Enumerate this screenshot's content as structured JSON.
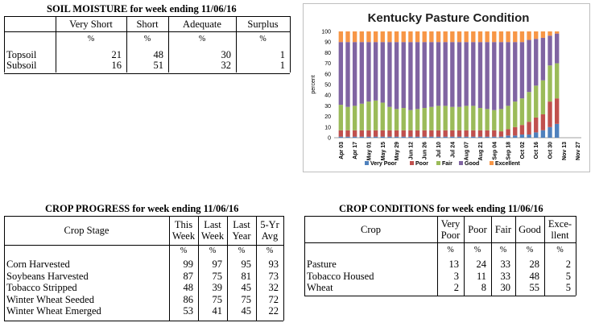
{
  "soil": {
    "title": "SOIL MOISTURE for week ending 11/06/16",
    "headers": [
      "Very Short",
      "Short",
      "Adequate",
      "Surplus"
    ],
    "units": [
      "%",
      "%",
      "%",
      "%"
    ],
    "rows": [
      {
        "label": "Topsoil",
        "values": [
          "21",
          "48",
          "30",
          "1"
        ]
      },
      {
        "label": "Subsoil",
        "values": [
          "16",
          "51",
          "32",
          "1"
        ]
      }
    ]
  },
  "crop_progress": {
    "title": "CROP PROGRESS for week ending 11/06/16",
    "stage_header": "Crop Stage",
    "headers": [
      [
        "This",
        "Week"
      ],
      [
        "Last",
        "Week"
      ],
      [
        "Last",
        "Year"
      ],
      [
        "5-Yr",
        "Avg"
      ]
    ],
    "units": [
      "%",
      "%",
      "%",
      "%"
    ],
    "rows": [
      {
        "label": "Corn Harvested",
        "values": [
          "99",
          "97",
          "95",
          "93"
        ]
      },
      {
        "label": "Soybeans Harvested",
        "values": [
          "87",
          "75",
          "81",
          "73"
        ]
      },
      {
        "label": "Tobacco Stripped",
        "values": [
          "48",
          "39",
          "45",
          "32"
        ]
      },
      {
        "label": "Winter Wheat Seeded",
        "values": [
          "86",
          "75",
          "75",
          "72"
        ]
      },
      {
        "label": "Winter Wheat Emerged",
        "values": [
          "53",
          "41",
          "45",
          "22"
        ]
      }
    ]
  },
  "crop_conditions": {
    "title": "CROP CONDITIONS for week ending 11/06/16",
    "crop_header": "Crop",
    "headers": [
      [
        "Very",
        "Poor"
      ],
      [
        "Poor",
        ""
      ],
      [
        "Fair",
        ""
      ],
      [
        "Good",
        ""
      ],
      [
        "Exce-",
        "llent"
      ]
    ],
    "units": [
      "%",
      "%",
      "%",
      "%",
      "%"
    ],
    "rows": [
      {
        "label": "Pasture",
        "values": [
          "13",
          "24",
          "33",
          "28",
          "2"
        ]
      },
      {
        "label": "Tobacco Housed",
        "values": [
          "3",
          "11",
          "33",
          "48",
          "5"
        ]
      },
      {
        "label": "Wheat",
        "values": [
          "2",
          "8",
          "30",
          "55",
          "5"
        ]
      }
    ]
  },
  "chart_data": {
    "type": "bar",
    "stacked": true,
    "title": "Kentucky Pasture Condition",
    "ylabel": "percent",
    "xlabel": "",
    "ylim": [
      0,
      100
    ],
    "yticks": [
      0,
      10,
      20,
      30,
      40,
      50,
      60,
      70,
      80,
      90,
      100
    ],
    "xtick_labels": [
      "Apr 03",
      "Apr 17",
      "May 01",
      "May 15",
      "May 29",
      "Jun 12",
      "Jun 26",
      "Jul 10",
      "Jul 24",
      "Aug 07",
      "Aug 21",
      "Sep 04",
      "Sep 18",
      "Oct 02",
      "Oct 16",
      "Oct 30",
      "Nov 13",
      "Nov 27"
    ],
    "categories": [
      "Apr 03",
      "Apr 10",
      "Apr 17",
      "Apr 24",
      "May 01",
      "May 08",
      "May 15",
      "May 22",
      "May 29",
      "Jun 05",
      "Jun 12",
      "Jun 19",
      "Jun 26",
      "Jul 03",
      "Jul 10",
      "Jul 17",
      "Jul 24",
      "Jul 31",
      "Aug 07",
      "Aug 14",
      "Aug 21",
      "Aug 28",
      "Sep 04",
      "Sep 11",
      "Sep 18",
      "Sep 25",
      "Oct 02",
      "Oct 09",
      "Oct 16",
      "Oct 23",
      "Oct 30",
      "Nov 06"
    ],
    "legend": [
      "Very Poor",
      "Poor",
      "Fair",
      "Good",
      "Excellent"
    ],
    "legend_position": "bottom",
    "series": [
      {
        "name": "Very Poor",
        "color": "#4f81bd",
        "values": [
          1,
          1,
          1,
          1,
          1,
          1,
          1,
          1,
          1,
          1,
          1,
          1,
          1,
          1,
          1,
          1,
          1,
          1,
          1,
          1,
          1,
          1,
          1,
          1,
          2,
          2,
          3,
          3,
          5,
          7,
          10,
          13
        ]
      },
      {
        "name": "Poor",
        "color": "#c0504d",
        "values": [
          6,
          6,
          6,
          6,
          6,
          6,
          6,
          6,
          6,
          6,
          6,
          6,
          6,
          6,
          6,
          6,
          6,
          6,
          6,
          6,
          6,
          6,
          6,
          5,
          6,
          8,
          9,
          12,
          14,
          15,
          24,
          24
        ]
      },
      {
        "name": "Fair",
        "color": "#9bbb59",
        "values": [
          24,
          22,
          23,
          25,
          27,
          28,
          26,
          22,
          20,
          21,
          19,
          20,
          21,
          22,
          23,
          23,
          22,
          22,
          23,
          23,
          21,
          20,
          19,
          21,
          22,
          24,
          25,
          28,
          30,
          32,
          34,
          33
        ]
      },
      {
        "name": "Good",
        "color": "#8064a2",
        "values": [
          59,
          61,
          60,
          58,
          56,
          55,
          57,
          61,
          63,
          62,
          64,
          63,
          62,
          61,
          60,
          60,
          61,
          61,
          60,
          60,
          62,
          63,
          64,
          63,
          60,
          56,
          53,
          49,
          44,
          40,
          28,
          28
        ]
      },
      {
        "name": "Excellent",
        "color": "#f79646",
        "values": [
          10,
          10,
          10,
          10,
          10,
          10,
          10,
          10,
          10,
          10,
          10,
          10,
          10,
          10,
          10,
          10,
          10,
          10,
          10,
          10,
          10,
          10,
          10,
          10,
          10,
          10,
          10,
          8,
          7,
          6,
          4,
          2
        ]
      }
    ]
  }
}
